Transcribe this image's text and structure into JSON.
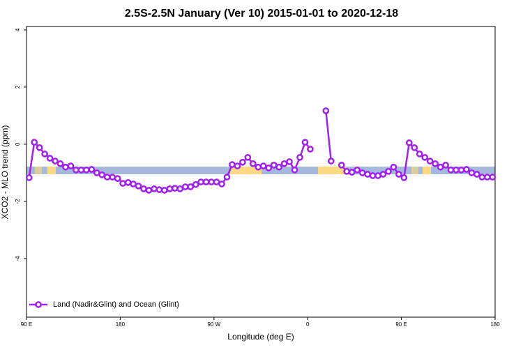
{
  "chart_data": {
    "type": "line",
    "title": "2.5S-2.5N January (Ver 10)   2015-01-01 to 2020-12-18",
    "x_label": "Longitude (deg E)",
    "y_label": "XCO2 - MLO trend (ppm)",
    "x": [
      92.5,
      97.5,
      102.5,
      107.5,
      112.5,
      117.5,
      122.5,
      127.5,
      132.5,
      137.5,
      142.5,
      147.5,
      152.5,
      157.5,
      162.5,
      167.5,
      172.5,
      177.5,
      182.5,
      187.5,
      192.5,
      197.5,
      202.5,
      207.5,
      212.5,
      217.5,
      222.5,
      227.5,
      232.5,
      237.5,
      242.5,
      247.5,
      252.5,
      257.5,
      262.5,
      267.5,
      272.5,
      277.5,
      282.5,
      287.5,
      292.5,
      297.5,
      302.5,
      307.5,
      312.5,
      317.5,
      322.5,
      327.5,
      332.5,
      337.5,
      342.5,
      347.5,
      352.5,
      357.5,
      362.5,
      367.5,
      372.5,
      377.5,
      382.5,
      387.5,
      392.5,
      397.5,
      402.5,
      407.5,
      412.5,
      417.5,
      422.5,
      427.5,
      432.5,
      437.5,
      442.5,
      447.5,
      452.5,
      457.5,
      462.5,
      467.5,
      472.5,
      477.5,
      482.5,
      487.5,
      492.5,
      497.5,
      502.5,
      507.5,
      512.5,
      517.5,
      522.5,
      527.5,
      532.5,
      537.5
    ],
    "series": [
      {
        "name": "Land (Nadir&Glint) and Ocean (Glint)",
        "color": "#a020f0",
        "values": [
          -1.17,
          0.07,
          -0.12,
          -0.34,
          -0.49,
          -0.59,
          -0.68,
          -0.8,
          -0.76,
          -0.9,
          -0.9,
          -0.9,
          -0.88,
          -1.0,
          -1.07,
          -1.15,
          -1.15,
          -1.2,
          -1.37,
          -1.34,
          -1.39,
          -1.46,
          -1.56,
          -1.61,
          -1.56,
          -1.59,
          -1.61,
          -1.56,
          -1.54,
          -1.56,
          -1.49,
          -1.49,
          -1.41,
          -1.32,
          -1.32,
          -1.32,
          -1.32,
          -1.39,
          -1.15,
          -0.71,
          -0.76,
          -0.63,
          -0.46,
          -0.68,
          -0.8,
          -0.76,
          -0.83,
          -0.73,
          -0.8,
          -0.68,
          -0.61,
          -0.9,
          -0.46,
          0.07,
          -0.17,
          null,
          null,
          1.17,
          -0.59,
          null,
          -0.73,
          -0.95,
          -0.98,
          -0.9,
          -1.0,
          -1.05,
          -1.1,
          -1.1,
          -1.05,
          -0.95,
          -0.8,
          -1.05,
          -1.17,
          0.05,
          -0.12,
          -0.34,
          -0.46,
          -0.59,
          -0.68,
          -0.8,
          -0.73,
          -0.9,
          -0.9,
          -0.9,
          -0.88,
          -1.0,
          -1.05,
          -1.15,
          -1.15,
          -1.15
        ]
      }
    ],
    "xlim": [
      90,
      540
    ],
    "xticks": [
      {
        "value": 90,
        "label": "90 E"
      },
      180,
      {
        "value": 270,
        "label": "90 W"
      },
      {
        "value": 360,
        "label": "0"
      },
      {
        "value": 450,
        "label": "90 E"
      },
      {
        "value": 540,
        "label": "180"
      }
    ],
    "ylim": [
      -6.05,
      4.12
    ],
    "yticks": [
      4,
      2,
      0,
      -2,
      -4
    ],
    "legend_position": "bottomleft"
  }
}
